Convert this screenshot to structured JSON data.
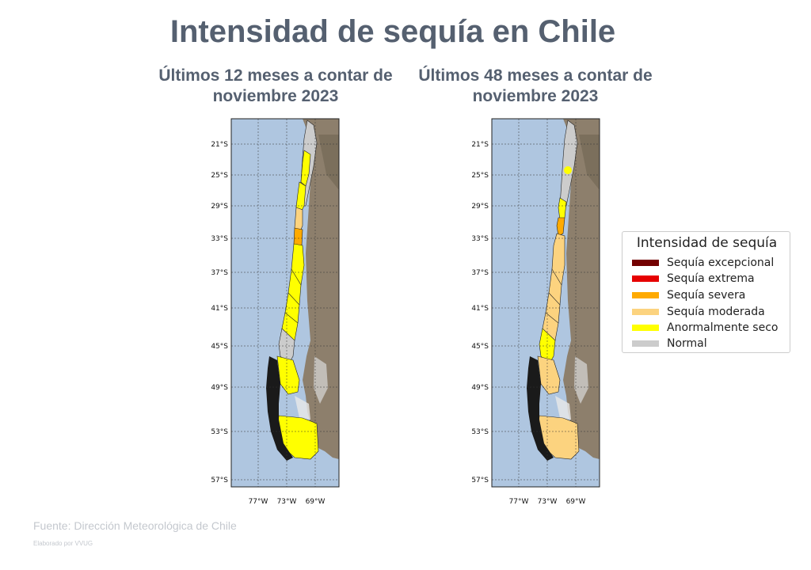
{
  "title": "Intensidad de sequía en Chile",
  "maps": [
    {
      "subtitle_line1": "Últimos 12 meses a contar de",
      "subtitle_line2": "noviembre 2023",
      "lat_labels": [
        "21°S",
        "25°S",
        "29°S",
        "33°S",
        "37°S",
        "41°S",
        "45°S",
        "49°S",
        "53°S",
        "57°S"
      ],
      "lon_labels": [
        "77°W",
        "73°W",
        "69°W"
      ],
      "dominant_category": "Anormalmente seco"
    },
    {
      "subtitle_line1": "Últimos 48 meses a contar de",
      "subtitle_line2": "noviembre 2023",
      "lat_labels": [
        "21°S",
        "25°S",
        "29°S",
        "33°S",
        "37°S",
        "41°S",
        "45°S",
        "49°S",
        "53°S",
        "57°S"
      ],
      "lon_labels": [
        "77°W",
        "73°W",
        "69°W"
      ],
      "dominant_category": "Sequía moderada"
    }
  ],
  "legend": {
    "title": "Intensidad de sequía",
    "items": [
      {
        "label": "Sequía excepcional",
        "color": "#730000"
      },
      {
        "label": "Sequía extrema",
        "color": "#e60000"
      },
      {
        "label": "Sequía severa",
        "color": "#ffaa00"
      },
      {
        "label": "Sequía moderada",
        "color": "#fcd37f"
      },
      {
        "label": "Anormalmente seco",
        "color": "#ffff00"
      },
      {
        "label": "Normal",
        "color": "#cccccc"
      }
    ]
  },
  "colors": {
    "ocean": "#afc6e0",
    "land": "#8d7f6c",
    "title_text": "#556070"
  },
  "source": "Fuente: Dirección Meteorológica de Chile",
  "credit": "Elaborado por VVUG"
}
